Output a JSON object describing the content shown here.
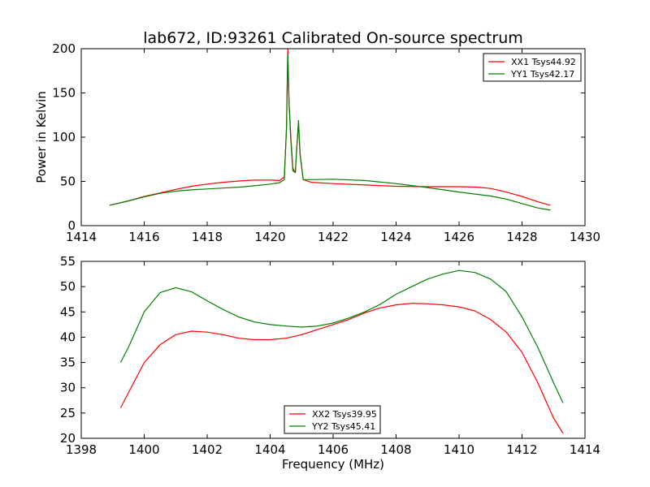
{
  "chart_data": [
    {
      "type": "line",
      "title": "lab672, ID:93261 Calibrated On-source spectrum",
      "xlabel": "",
      "ylabel": "Power in Kelvin",
      "xlim": [
        1414,
        1430
      ],
      "ylim": [
        0,
        200
      ],
      "xticks": [
        "1414",
        "1416",
        "1418",
        "1420",
        "1422",
        "1424",
        "1426",
        "1428",
        "1430"
      ],
      "yticks": [
        "0",
        "50",
        "100",
        "150",
        "200"
      ],
      "legend_position": "top-right",
      "series": [
        {
          "name": "XX1 Tsys44.92",
          "color": "#ff0000",
          "points": [
            [
              1414.9,
              23
            ],
            [
              1415.5,
              28
            ],
            [
              1416,
              33
            ],
            [
              1416.5,
              37
            ],
            [
              1417,
              41
            ],
            [
              1417.5,
              44.5
            ],
            [
              1418,
              47
            ],
            [
              1418.5,
              49
            ],
            [
              1419,
              50.5
            ],
            [
              1419.5,
              51.5
            ],
            [
              1420,
              51.5
            ],
            [
              1420.3,
              51
            ],
            [
              1420.45,
              55
            ],
            [
              1420.52,
              110
            ],
            [
              1420.56,
              200
            ],
            [
              1420.6,
              140
            ],
            [
              1420.65,
              105
            ],
            [
              1420.72,
              65
            ],
            [
              1420.8,
              60
            ],
            [
              1420.85,
              90
            ],
            [
              1420.9,
              115
            ],
            [
              1420.95,
              80
            ],
            [
              1421.05,
              52
            ],
            [
              1421.3,
              49
            ],
            [
              1422,
              47.5
            ],
            [
              1423,
              46
            ],
            [
              1424,
              44.5
            ],
            [
              1425,
              44
            ],
            [
              1426,
              44
            ],
            [
              1426.6,
              43.5
            ],
            [
              1427,
              42
            ],
            [
              1427.5,
              38
            ],
            [
              1428,
              33
            ],
            [
              1428.5,
              27
            ],
            [
              1428.9,
              23
            ]
          ]
        },
        {
          "name": "YY1 Tsys42.17",
          "color": "#008000",
          "points": [
            [
              1414.9,
              23
            ],
            [
              1415.5,
              28
            ],
            [
              1416,
              32.5
            ],
            [
              1416.5,
              36.5
            ],
            [
              1417,
              39
            ],
            [
              1417.5,
              40.5
            ],
            [
              1418,
              41.5
            ],
            [
              1418.5,
              42.5
            ],
            [
              1419,
              43.5
            ],
            [
              1419.5,
              45
            ],
            [
              1420,
              47
            ],
            [
              1420.3,
              48.5
            ],
            [
              1420.45,
              52
            ],
            [
              1420.52,
              110
            ],
            [
              1420.56,
              193
            ],
            [
              1420.6,
              140
            ],
            [
              1420.65,
              100
            ],
            [
              1420.72,
              62
            ],
            [
              1420.8,
              60
            ],
            [
              1420.85,
              90
            ],
            [
              1420.9,
              119
            ],
            [
              1420.95,
              82
            ],
            [
              1421.05,
              52
            ],
            [
              1421.3,
              52
            ],
            [
              1422,
              52.5
            ],
            [
              1423,
              51
            ],
            [
              1424,
              47.5
            ],
            [
              1425,
              43
            ],
            [
              1426,
              38
            ],
            [
              1427,
              33.5
            ],
            [
              1427.5,
              30
            ],
            [
              1428,
              25
            ],
            [
              1428.5,
              20
            ],
            [
              1428.9,
              17.5
            ]
          ]
        }
      ]
    },
    {
      "type": "line",
      "title": "",
      "xlabel": "Frequency (MHz)",
      "ylabel": "",
      "xlim": [
        1398,
        1414
      ],
      "ylim": [
        20,
        55
      ],
      "xticks": [
        "1398",
        "1400",
        "1402",
        "1404",
        "1406",
        "1408",
        "1410",
        "1412",
        "1414"
      ],
      "yticks": [
        "20",
        "25",
        "30",
        "35",
        "40",
        "45",
        "50",
        "55"
      ],
      "legend_position": "bottom-center",
      "series": [
        {
          "name": "XX2 Tsys39.95",
          "color": "#ff0000",
          "points": [
            [
              1399.25,
              26
            ],
            [
              1399.5,
              29
            ],
            [
              1400,
              35
            ],
            [
              1400.5,
              38.5
            ],
            [
              1401,
              40.5
            ],
            [
              1401.5,
              41.2
            ],
            [
              1402,
              41
            ],
            [
              1402.5,
              40.5
            ],
            [
              1403,
              39.8
            ],
            [
              1403.5,
              39.5
            ],
            [
              1404,
              39.5
            ],
            [
              1404.5,
              39.8
            ],
            [
              1405,
              40.5
            ],
            [
              1405.5,
              41.5
            ],
            [
              1406,
              42.5
            ],
            [
              1406.5,
              43.5
            ],
            [
              1407,
              44.8
            ],
            [
              1407.5,
              45.8
            ],
            [
              1408,
              46.4
            ],
            [
              1408.5,
              46.7
            ],
            [
              1409,
              46.6
            ],
            [
              1409.5,
              46.4
            ],
            [
              1410,
              46
            ],
            [
              1410.5,
              45.2
            ],
            [
              1411,
              43.5
            ],
            [
              1411.5,
              41
            ],
            [
              1412,
              37
            ],
            [
              1412.5,
              31
            ],
            [
              1413,
              24
            ],
            [
              1413.3,
              21
            ]
          ]
        },
        {
          "name": "YY2 Tsys45.41",
          "color": "#008000",
          "points": [
            [
              1399.25,
              35
            ],
            [
              1399.5,
              38
            ],
            [
              1400,
              45
            ],
            [
              1400.5,
              48.8
            ],
            [
              1401,
              49.8
            ],
            [
              1401.5,
              49
            ],
            [
              1402,
              47.2
            ],
            [
              1402.5,
              45.5
            ],
            [
              1403,
              44
            ],
            [
              1403.5,
              43
            ],
            [
              1404,
              42.5
            ],
            [
              1404.5,
              42.2
            ],
            [
              1405,
              42
            ],
            [
              1405.5,
              42.2
            ],
            [
              1406,
              42.8
            ],
            [
              1406.5,
              43.8
            ],
            [
              1407,
              45
            ],
            [
              1407.5,
              46.5
            ],
            [
              1408,
              48.5
            ],
            [
              1408.5,
              50
            ],
            [
              1409,
              51.5
            ],
            [
              1409.5,
              52.5
            ],
            [
              1410,
              53.2
            ],
            [
              1410.5,
              52.8
            ],
            [
              1411,
              51.5
            ],
            [
              1411.5,
              49
            ],
            [
              1412,
              44
            ],
            [
              1412.5,
              38
            ],
            [
              1413,
              31
            ],
            [
              1413.3,
              27
            ]
          ]
        }
      ]
    }
  ]
}
